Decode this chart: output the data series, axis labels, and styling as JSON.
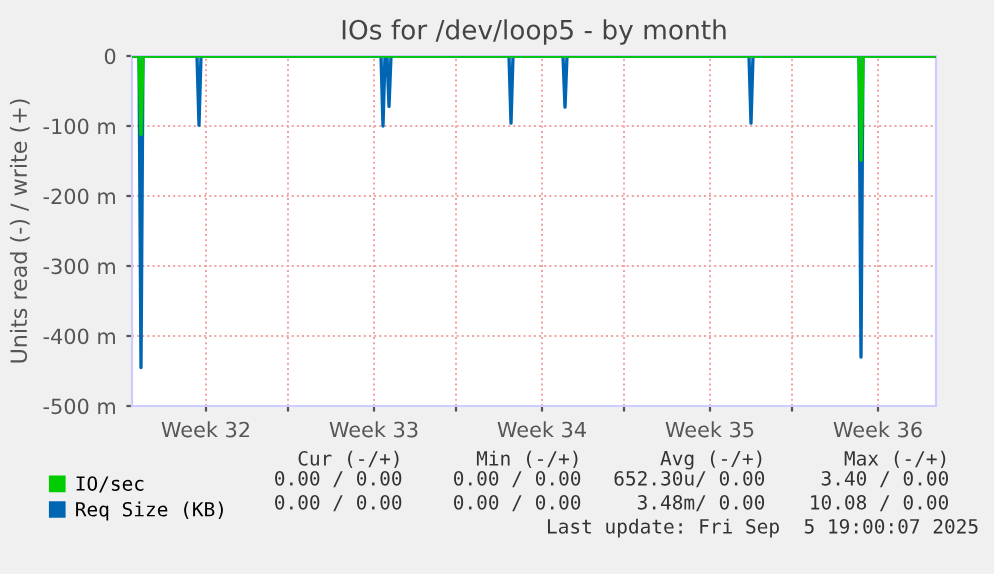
{
  "chart_data": {
    "type": "line",
    "title": "IOs for /dev/loop5 - by month",
    "ylabel": "Units read (-) / write (+)",
    "xlim": [
      "2025-08-04T12:00",
      "2025-09-07T00:00"
    ],
    "ylim": [
      -500,
      0
    ],
    "xticks": [
      {
        "value": "2025-08-07T14:00",
        "label": "Week 32"
      },
      {
        "value": "2025-08-11",
        "label": null
      },
      {
        "value": "2025-08-14T14:00",
        "label": "Week 33"
      },
      {
        "value": "2025-08-18",
        "label": null
      },
      {
        "value": "2025-08-21T14:00",
        "label": "Week 34"
      },
      {
        "value": "2025-08-25",
        "label": null
      },
      {
        "value": "2025-08-28T14:00",
        "label": "Week 35"
      },
      {
        "value": "2025-09-01",
        "label": null
      },
      {
        "value": "2025-09-04T14:00",
        "label": "Week 36"
      }
    ],
    "yticks": [
      {
        "value": -500,
        "label": "-500 m"
      },
      {
        "value": -400,
        "label": "-400 m"
      },
      {
        "value": -300,
        "label": "-300 m"
      },
      {
        "value": -200,
        "label": "-200 m"
      },
      {
        "value": -100,
        "label": "-100 m"
      },
      0
    ],
    "grid": true,
    "legend": "bottom left",
    "marker": "none",
    "line_style": "solid",
    "series": [
      {
        "name": "Req Size (KB)",
        "color": "#0066b3",
        "x": [
          "2025-08-04T12:00",
          "2025-08-04T19:00",
          "2025-08-04T21:00",
          "2025-08-04T23:00",
          "2025-08-07T05:00",
          "2025-08-07T07:00",
          "2025-08-07T09:00",
          "2025-08-14T21:00",
          "2025-08-14T23:00",
          "2025-08-15T01:00",
          "2025-08-15T03:00",
          "2025-08-15T05:00",
          "2025-08-15T07:00",
          "2025-08-20T05:00",
          "2025-08-20T07:00",
          "2025-08-20T09:00",
          "2025-08-22T11:00",
          "2025-08-22T13:00",
          "2025-08-22T15:00",
          "2025-08-30T05:00",
          "2025-08-30T07:00",
          "2025-08-30T09:00",
          "2025-09-03T19:00",
          "2025-09-03T21:00",
          "2025-09-03T23:00",
          "2025-09-07T00:00"
        ],
        "values": [
          0,
          0,
          -445,
          0,
          0,
          -99,
          0,
          0,
          -100,
          0,
          0,
          -72,
          0,
          0,
          -96,
          0,
          0,
          -73,
          0,
          0,
          -96,
          0,
          0,
          -430,
          0,
          0
        ]
      },
      {
        "name": "IO/sec",
        "color": "#00cc00",
        "x": [
          "2025-08-04T12:00",
          "2025-08-04T19:00",
          "2025-08-04T21:00",
          "2025-08-04T23:00",
          "2025-09-03T19:00",
          "2025-09-03T21:00",
          "2025-09-03T23:00",
          "2025-09-07T00:00"
        ],
        "values": [
          0,
          0,
          -112,
          0,
          0,
          -149,
          0,
          0
        ]
      }
    ],
    "annotations": [
      "Cur (-/+)",
      "Min (-/+)",
      "Avg (-/+)",
      "Max (-/+)",
      "0.00 / 0.00",
      "0.00 / 0.00",
      "652.30u/ 0.00",
      "3.40 / 0.00",
      "0.00 / 0.00",
      "0.00 / 0.00",
      "3.48m/ 0.00",
      "10.08 / 0.00",
      "Last update: Fri Sep  5 19:00:07 2025"
    ]
  }
}
